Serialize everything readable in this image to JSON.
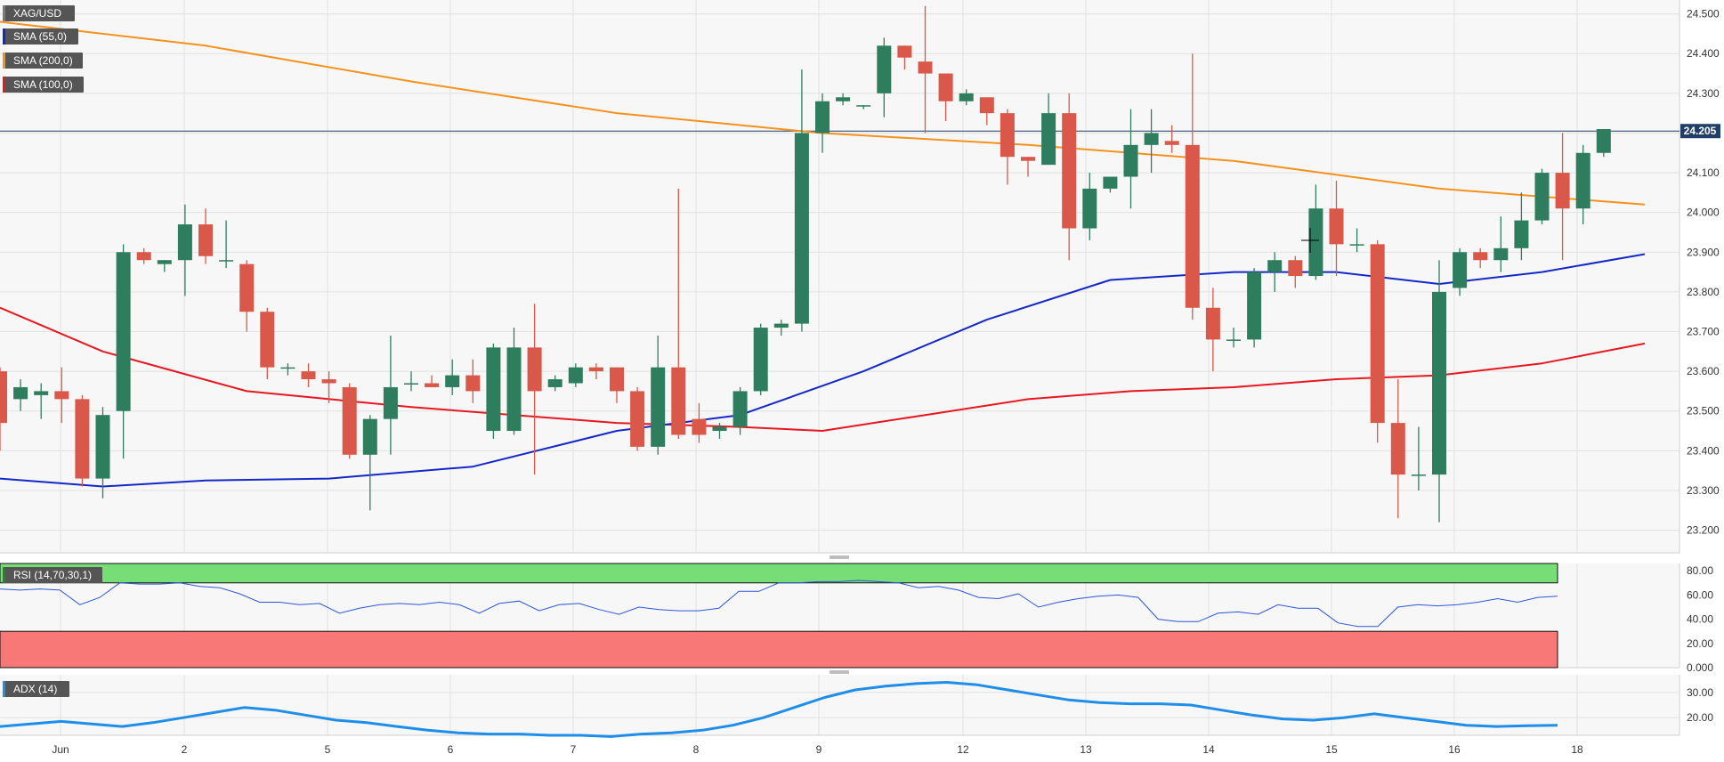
{
  "symbol": "XAG/USD",
  "indicators": {
    "sma55": {
      "label": "SMA (55,0)",
      "color": "#1428c8"
    },
    "sma200": {
      "label": "SMA (200,0)",
      "color": "#f5921e"
    },
    "sma100": {
      "label": "SMA (100,0)",
      "color": "#e8161e"
    },
    "rsi": {
      "label": "RSI (14,70,30,1)",
      "color": "#2b56d8"
    },
    "adx": {
      "label": "ADX (14)",
      "color": "#1e8ee8"
    }
  },
  "colors": {
    "up": "#2e7d5e",
    "down": "#d9584a",
    "overbought_zone": "#77dd77",
    "oversold_zone": "#f87878",
    "last_price_line": "#1f3f66"
  },
  "last_price_label": "24.205",
  "chart_data": [
    {
      "type": "candlestick",
      "name": "price",
      "y_ticks": [
        "24.500",
        "24.400",
        "24.300",
        "24.200",
        "24.100",
        "24.000",
        "23.900",
        "23.800",
        "23.700",
        "23.600",
        "23.500",
        "23.400",
        "23.300",
        "23.200"
      ],
      "x_tick_labels": [
        "Jun",
        "2",
        "5",
        "6",
        "7",
        "8",
        "9",
        "12",
        "13",
        "14",
        "15",
        "16",
        "18"
      ],
      "ylim": [
        23.143,
        24.535
      ],
      "last_price": 24.205,
      "candles": [
        [
          23.6,
          23.61,
          23.4,
          23.47
        ],
        [
          23.53,
          23.58,
          23.5,
          23.56
        ],
        [
          23.54,
          23.57,
          23.48,
          23.55
        ],
        [
          23.55,
          23.61,
          23.47,
          23.53
        ],
        [
          23.53,
          23.54,
          23.31,
          23.33
        ],
        [
          23.33,
          23.51,
          23.28,
          23.49
        ],
        [
          23.5,
          23.92,
          23.38,
          23.9
        ],
        [
          23.9,
          23.91,
          23.87,
          23.88
        ],
        [
          23.87,
          23.88,
          23.85,
          23.88
        ],
        [
          23.88,
          24.02,
          23.79,
          23.97
        ],
        [
          23.97,
          24.01,
          23.87,
          23.89
        ],
        [
          23.88,
          23.98,
          23.86,
          23.88
        ],
        [
          23.87,
          23.88,
          23.7,
          23.75
        ],
        [
          23.75,
          23.76,
          23.58,
          23.61
        ],
        [
          23.61,
          23.62,
          23.59,
          23.61
        ],
        [
          23.6,
          23.62,
          23.56,
          23.58
        ],
        [
          23.58,
          23.6,
          23.52,
          23.57
        ],
        [
          23.56,
          23.57,
          23.38,
          23.39
        ],
        [
          23.39,
          23.49,
          23.25,
          23.48
        ],
        [
          23.48,
          23.69,
          23.39,
          23.56
        ],
        [
          23.57,
          23.6,
          23.55,
          23.57
        ],
        [
          23.57,
          23.59,
          23.56,
          23.56
        ],
        [
          23.56,
          23.63,
          23.54,
          23.59
        ],
        [
          23.59,
          23.63,
          23.52,
          23.55
        ],
        [
          23.45,
          23.67,
          23.43,
          23.66
        ],
        [
          23.45,
          23.71,
          23.44,
          23.66
        ],
        [
          23.66,
          23.77,
          23.34,
          23.55
        ],
        [
          23.56,
          23.59,
          23.55,
          23.58
        ],
        [
          23.57,
          23.62,
          23.56,
          23.61
        ],
        [
          23.61,
          23.62,
          23.58,
          23.6
        ],
        [
          23.61,
          23.61,
          23.52,
          23.55
        ],
        [
          23.55,
          23.56,
          23.4,
          23.41
        ],
        [
          23.41,
          23.69,
          23.39,
          23.61
        ],
        [
          23.61,
          24.06,
          23.43,
          23.44
        ],
        [
          23.48,
          23.52,
          23.42,
          23.44
        ],
        [
          23.45,
          23.47,
          23.43,
          23.46
        ],
        [
          23.46,
          23.56,
          23.44,
          23.55
        ],
        [
          23.55,
          23.72,
          23.54,
          23.71
        ],
        [
          23.71,
          23.73,
          23.69,
          23.72
        ],
        [
          23.72,
          24.36,
          23.7,
          24.2
        ],
        [
          24.2,
          24.3,
          24.15,
          24.28
        ],
        [
          24.28,
          24.3,
          24.27,
          24.29
        ],
        [
          24.27,
          24.27,
          24.26,
          24.27
        ],
        [
          24.3,
          24.44,
          24.24,
          24.42
        ],
        [
          24.42,
          24.42,
          24.36,
          24.39
        ],
        [
          24.38,
          24.52,
          24.2,
          24.35
        ],
        [
          24.35,
          24.35,
          24.23,
          24.28
        ],
        [
          24.28,
          24.31,
          24.27,
          24.3
        ],
        [
          24.29,
          24.29,
          24.22,
          24.25
        ],
        [
          24.25,
          24.26,
          24.07,
          24.14
        ],
        [
          24.14,
          24.14,
          24.09,
          24.13
        ],
        [
          24.12,
          24.3,
          24.12,
          24.25
        ],
        [
          24.25,
          24.3,
          23.88,
          23.96
        ],
        [
          23.96,
          24.1,
          23.93,
          24.06
        ],
        [
          24.06,
          24.09,
          24.05,
          24.09
        ],
        [
          24.09,
          24.26,
          24.01,
          24.17
        ],
        [
          24.17,
          24.26,
          24.1,
          24.2
        ],
        [
          24.18,
          24.22,
          24.15,
          24.17
        ],
        [
          24.17,
          24.4,
          23.73,
          23.76
        ],
        [
          23.76,
          23.81,
          23.6,
          23.68
        ],
        [
          23.68,
          23.71,
          23.66,
          23.68
        ],
        [
          23.68,
          23.86,
          23.66,
          23.85
        ],
        [
          23.85,
          23.9,
          23.8,
          23.88
        ],
        [
          23.88,
          23.89,
          23.81,
          23.84
        ],
        [
          23.84,
          24.07,
          23.83,
          24.01
        ],
        [
          24.01,
          24.08,
          23.84,
          23.92
        ],
        [
          23.92,
          23.96,
          23.9,
          23.92
        ],
        [
          23.92,
          23.93,
          23.42,
          23.47
        ],
        [
          23.47,
          23.58,
          23.23,
          23.34
        ],
        [
          23.34,
          23.46,
          23.3,
          23.34
        ],
        [
          23.34,
          23.88,
          23.22,
          23.8
        ],
        [
          23.81,
          23.91,
          23.79,
          23.9
        ],
        [
          23.9,
          23.91,
          23.86,
          23.88
        ],
        [
          23.88,
          23.99,
          23.85,
          23.91
        ],
        [
          23.91,
          24.05,
          23.88,
          23.98
        ],
        [
          23.98,
          24.11,
          23.97,
          24.1
        ],
        [
          24.1,
          24.2,
          23.88,
          24.01
        ],
        [
          24.01,
          24.17,
          23.97,
          24.15
        ],
        [
          24.15,
          24.21,
          24.14,
          24.21
        ]
      ],
      "sma200": [
        [
          0,
          24.48
        ],
        [
          10,
          24.42
        ],
        [
          20,
          24.33
        ],
        [
          30,
          24.25
        ],
        [
          40,
          24.2
        ],
        [
          50,
          24.17
        ],
        [
          60,
          24.13
        ],
        [
          70,
          24.06
        ],
        [
          80,
          24.02
        ]
      ],
      "sma55": [
        [
          0,
          23.33
        ],
        [
          5,
          23.31
        ],
        [
          10,
          23.325
        ],
        [
          16,
          23.33
        ],
        [
          23,
          23.36
        ],
        [
          30,
          23.45
        ],
        [
          36,
          23.49
        ],
        [
          42,
          23.6
        ],
        [
          48,
          23.73
        ],
        [
          54,
          23.83
        ],
        [
          60,
          23.85
        ],
        [
          65,
          23.85
        ],
        [
          70,
          23.82
        ],
        [
          75,
          23.85
        ],
        [
          80,
          23.895
        ]
      ],
      "sma100": [
        [
          0,
          23.76
        ],
        [
          5,
          23.65
        ],
        [
          12,
          23.55
        ],
        [
          20,
          23.51
        ],
        [
          30,
          23.47
        ],
        [
          36,
          23.46
        ],
        [
          40,
          23.45
        ],
        [
          45,
          23.49
        ],
        [
          50,
          23.53
        ],
        [
          55,
          23.55
        ],
        [
          60,
          23.56
        ],
        [
          65,
          23.58
        ],
        [
          70,
          23.59
        ],
        [
          75,
          23.62
        ],
        [
          80,
          23.67
        ]
      ]
    },
    {
      "type": "line",
      "name": "RSI",
      "y_ticks": [
        "80.00",
        "60.00",
        "40.00",
        "20.00",
        "0.000"
      ],
      "ylim": [
        0,
        86
      ],
      "zones": {
        "overbought": [
          70,
          86
        ],
        "oversold": [
          0,
          30
        ]
      },
      "values": [
        65,
        64,
        65,
        64,
        52,
        58,
        70,
        69,
        69,
        70,
        67,
        66,
        61,
        54,
        54,
        52,
        53,
        45,
        49,
        52,
        53,
        52,
        54,
        52,
        45,
        53,
        55,
        47,
        52,
        53,
        48,
        44,
        50,
        48,
        47,
        47,
        49,
        63,
        63,
        70,
        70,
        71,
        71,
        72,
        71,
        70,
        66,
        67,
        64,
        58,
        57,
        61,
        50,
        54,
        57,
        59,
        60,
        58,
        40,
        38,
        38,
        45,
        46,
        44,
        52,
        49,
        49,
        37,
        34,
        34,
        50,
        52,
        51,
        52,
        54,
        57,
        54,
        58,
        59
      ]
    },
    {
      "type": "line",
      "name": "ADX",
      "y_ticks": [
        "30.00",
        "20.00"
      ],
      "ylim": [
        13,
        37
      ],
      "values": [
        16.5,
        17.5,
        18.5,
        17.5,
        16.5,
        18,
        20,
        22,
        24,
        23,
        21,
        19,
        18,
        16.5,
        15,
        14,
        13.5,
        13.5,
        13,
        13,
        12.5,
        13.5,
        14,
        15,
        17,
        20,
        24,
        28,
        31,
        32.5,
        33.5,
        34,
        33,
        31,
        29,
        27,
        26,
        25.5,
        25.5,
        25,
        23,
        21,
        19.5,
        19,
        20,
        21.5,
        20,
        18.5,
        17,
        16.5,
        16.8,
        17
      ]
    }
  ]
}
